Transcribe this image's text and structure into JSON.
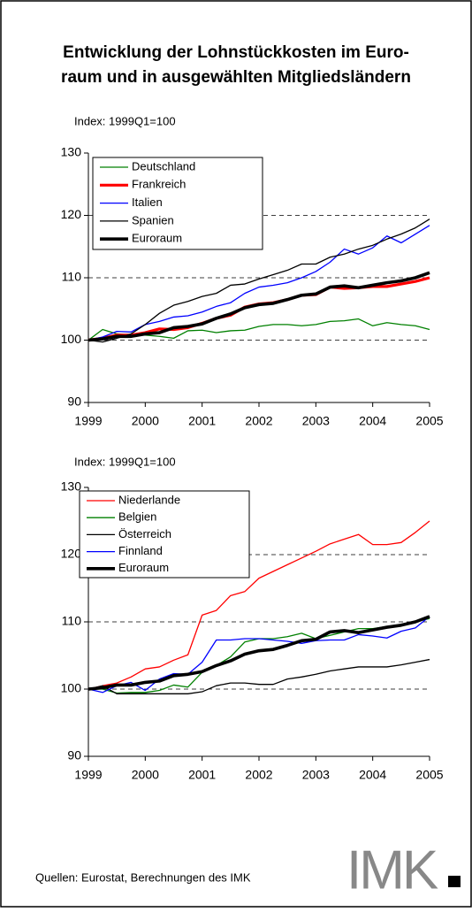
{
  "title_lines": [
    "Entwicklung der Lohnstückkosten im Euro-",
    "raum und in ausgewählten Mitgliedsländern"
  ],
  "chart_data": [
    {
      "type": "line",
      "subtitle": "Index: 1999Q1=100",
      "x": [
        1999,
        1999.25,
        1999.5,
        1999.75,
        2000,
        2000.25,
        2000.5,
        2000.75,
        2001,
        2001.25,
        2001.5,
        2001.75,
        2002,
        2002.25,
        2002.5,
        2002.75,
        2003,
        2003.25,
        2003.5,
        2003.75,
        2004,
        2004.25,
        2004.5,
        2004.75,
        2005
      ],
      "xlim": [
        1999,
        2005
      ],
      "xticks": [
        1999,
        2000,
        2001,
        2002,
        2003,
        2004,
        2005
      ],
      "ylim": [
        90,
        130
      ],
      "yticks": [
        90,
        100,
        110,
        120,
        130
      ],
      "grid": true,
      "series": [
        {
          "name": "Deutschland",
          "color": "#008000",
          "line_width": 1.3,
          "values": [
            100,
            101.7,
            101.0,
            100.8,
            100.8,
            100.6,
            100.3,
            101.5,
            101.6,
            101.2,
            101.5,
            101.6,
            102.2,
            102.5,
            102.5,
            102.3,
            102.5,
            103.0,
            103.1,
            103.4,
            102.3,
            102.8,
            102.5,
            102.3,
            101.7
          ]
        },
        {
          "name": "Frankreich",
          "color": "#ff0000",
          "line_width": 3.2,
          "values": [
            100,
            100.3,
            100.8,
            100.8,
            101.2,
            101.8,
            101.7,
            102.0,
            102.7,
            103.5,
            104.0,
            105.3,
            105.8,
            106.0,
            106.5,
            107.2,
            107.3,
            108.5,
            108.3,
            108.4,
            108.6,
            108.6,
            109.0,
            109.4,
            110.0
          ]
        },
        {
          "name": "Italien",
          "color": "#0000ff",
          "line_width": 1.3,
          "values": [
            100,
            100.5,
            101.4,
            101.3,
            102.5,
            103.0,
            103.7,
            103.9,
            104.5,
            105.4,
            106.0,
            107.5,
            108.5,
            108.8,
            109.2,
            110.0,
            111.0,
            112.5,
            114.6,
            113.8,
            114.8,
            116.7,
            115.6,
            117.0,
            118.4
          ]
        },
        {
          "name": "Spanien",
          "color": "#000000",
          "line_width": 1.3,
          "values": [
            100,
            99.7,
            100.3,
            101.0,
            102.5,
            104.3,
            105.6,
            106.2,
            107.0,
            107.5,
            108.8,
            109.0,
            109.8,
            110.5,
            111.2,
            112.2,
            112.2,
            113.3,
            113.8,
            114.6,
            115.2,
            116.2,
            117.0,
            118.0,
            119.4
          ]
        },
        {
          "name": "Euroraum",
          "color": "#000000",
          "line_width": 3.6,
          "values": [
            100,
            100.2,
            100.6,
            100.6,
            101.0,
            101.2,
            102.0,
            102.2,
            102.6,
            103.5,
            104.2,
            105.2,
            105.7,
            105.9,
            106.5,
            107.2,
            107.4,
            108.5,
            108.7,
            108.4,
            108.8,
            109.2,
            109.5,
            110.0,
            110.8
          ]
        }
      ]
    },
    {
      "type": "line",
      "subtitle": "Index: 1999Q1=100",
      "x": [
        1999,
        1999.25,
        1999.5,
        1999.75,
        2000,
        2000.25,
        2000.5,
        2000.75,
        2001,
        2001.25,
        2001.5,
        2001.75,
        2002,
        2002.25,
        2002.5,
        2002.75,
        2003,
        2003.25,
        2003.5,
        2003.75,
        2004,
        2004.25,
        2004.5,
        2004.75,
        2005
      ],
      "xlim": [
        1999,
        2005
      ],
      "xticks": [
        1999,
        2000,
        2001,
        2002,
        2003,
        2004,
        2005
      ],
      "ylim": [
        90,
        130
      ],
      "yticks": [
        90,
        100,
        110,
        120,
        130
      ],
      "grid": true,
      "series": [
        {
          "name": "Niederlande",
          "color": "#ff0000",
          "line_width": 1.3,
          "values": [
            100,
            100.5,
            100.9,
            101.8,
            103.0,
            103.3,
            104.3,
            105.1,
            111.0,
            111.7,
            113.9,
            114.5,
            116.5,
            117.5,
            118.5,
            119.5,
            120.5,
            121.6,
            122.3,
            123.0,
            121.5,
            121.5,
            121.8,
            123.3,
            125.0
          ]
        },
        {
          "name": "Belgien",
          "color": "#008000",
          "line_width": 1.3,
          "values": [
            100,
            100,
            99.4,
            99.5,
            99.5,
            99.8,
            100.6,
            100.3,
            102.5,
            103.5,
            104.8,
            107.0,
            107.5,
            107.5,
            107.8,
            108.3,
            107.5,
            108.0,
            108.5,
            109.0,
            109.0,
            109.3,
            109.5,
            110.0,
            110.5
          ]
        },
        {
          "name": "Österreich",
          "color": "#000000",
          "line_width": 1.3,
          "values": [
            100,
            100.5,
            99.3,
            99.3,
            99.3,
            99.3,
            99.3,
            99.3,
            99.6,
            100.5,
            100.9,
            100.9,
            100.7,
            100.7,
            101.5,
            101.8,
            102.2,
            102.7,
            103.0,
            103.3,
            103.3,
            103.3,
            103.6,
            104.0,
            104.4
          ]
        },
        {
          "name": "Finnland",
          "color": "#0000ff",
          "line_width": 1.3,
          "values": [
            100,
            99.5,
            100.5,
            101.0,
            99.8,
            101.5,
            102.3,
            102.2,
            104.0,
            107.3,
            107.3,
            107.5,
            107.5,
            107.3,
            107.1,
            106.8,
            107.2,
            107.3,
            107.3,
            108.1,
            107.9,
            107.6,
            108.6,
            109.1,
            110.8
          ]
        },
        {
          "name": "Euroraum",
          "color": "#000000",
          "line_width": 3.6,
          "values": [
            100,
            100.2,
            100.6,
            100.6,
            101.0,
            101.2,
            102.0,
            102.2,
            102.6,
            103.5,
            104.2,
            105.2,
            105.7,
            105.9,
            106.5,
            107.2,
            107.4,
            108.5,
            108.7,
            108.4,
            108.8,
            109.2,
            109.5,
            110.0,
            110.8
          ]
        }
      ]
    }
  ],
  "source": "Quellen: Eurostat, Berechnungen des IMK",
  "logo": "IMK"
}
